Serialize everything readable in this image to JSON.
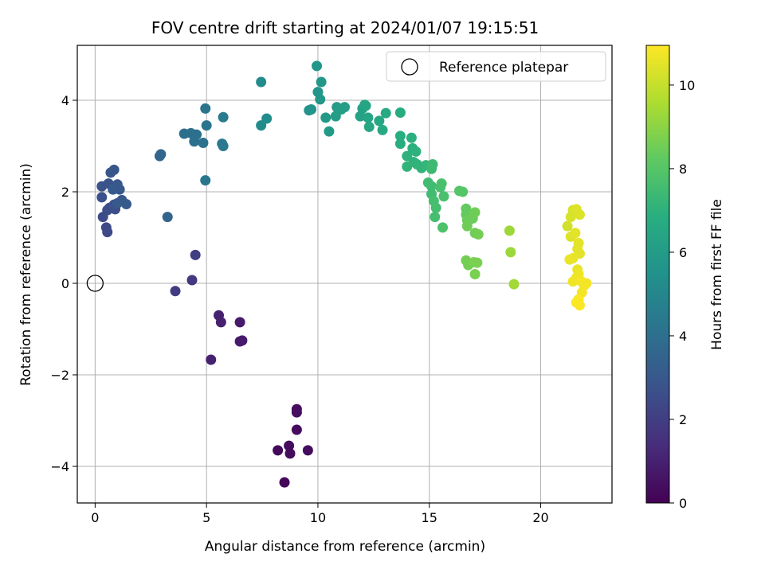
{
  "chart_data": {
    "type": "scatter",
    "title": "FOV centre drift starting at 2024/01/07 19:15:51",
    "xlabel": "Angular distance from reference (arcmin)",
    "ylabel": "Rotation from reference (arcmin)",
    "xlim": [
      -0.8,
      23.2
    ],
    "ylim": [
      -4.8,
      5.2
    ],
    "x_ticks": [
      0,
      5,
      10,
      15,
      20
    ],
    "y_ticks": [
      -4,
      -2,
      0,
      2,
      4
    ],
    "grid": true,
    "legend": {
      "placement": "top-right",
      "entries": [
        "Reference platepar"
      ]
    },
    "reference_point": {
      "x": 0,
      "y": 0
    },
    "colorbar": {
      "label": "Hours from first FF file",
      "range": [
        0,
        10.95
      ],
      "ticks": [
        0,
        2,
        4,
        6,
        8,
        10
      ],
      "colormap": "viridis"
    },
    "points": [
      {
        "x": 8.5,
        "y": -4.35,
        "c": 0.2
      },
      {
        "x": 8.2,
        "y": -3.65,
        "c": 0.25
      },
      {
        "x": 8.7,
        "y": -3.55,
        "c": 0.3
      },
      {
        "x": 8.75,
        "y": -3.72,
        "c": 0.3
      },
      {
        "x": 9.55,
        "y": -3.65,
        "c": 0.35
      },
      {
        "x": 9.05,
        "y": -3.2,
        "c": 0.35
      },
      {
        "x": 9.05,
        "y": -2.82,
        "c": 0.4
      },
      {
        "x": 9.05,
        "y": -2.75,
        "c": 0.4
      },
      {
        "x": 6.5,
        "y": -0.85,
        "c": 0.8
      },
      {
        "x": 6.5,
        "y": -1.27,
        "c": 0.8
      },
      {
        "x": 6.6,
        "y": -1.25,
        "c": 0.8
      },
      {
        "x": 5.55,
        "y": -0.7,
        "c": 1.0
      },
      {
        "x": 5.65,
        "y": -0.85,
        "c": 1.0
      },
      {
        "x": 5.2,
        "y": -1.67,
        "c": 1.0
      },
      {
        "x": 4.35,
        "y": 0.07,
        "c": 1.8
      },
      {
        "x": 3.6,
        "y": -0.17,
        "c": 1.9
      },
      {
        "x": 4.5,
        "y": 0.62,
        "c": 2.0
      },
      {
        "x": 0.5,
        "y": 1.22,
        "c": 2.4
      },
      {
        "x": 0.55,
        "y": 1.12,
        "c": 2.4
      },
      {
        "x": 0.35,
        "y": 1.45,
        "c": 2.5
      },
      {
        "x": 0.55,
        "y": 1.6,
        "c": 2.6
      },
      {
        "x": 0.65,
        "y": 1.65,
        "c": 2.6
      },
      {
        "x": 0.9,
        "y": 1.62,
        "c": 2.6
      },
      {
        "x": 0.85,
        "y": 1.72,
        "c": 2.7
      },
      {
        "x": 0.3,
        "y": 1.88,
        "c": 2.7
      },
      {
        "x": 0.3,
        "y": 2.12,
        "c": 2.8
      },
      {
        "x": 0.6,
        "y": 2.18,
        "c": 2.8
      },
      {
        "x": 0.7,
        "y": 2.42,
        "c": 2.9
      },
      {
        "x": 0.85,
        "y": 2.48,
        "c": 2.9
      },
      {
        "x": 1.0,
        "y": 2.16,
        "c": 3.0
      },
      {
        "x": 1.1,
        "y": 2.05,
        "c": 3.0
      },
      {
        "x": 1.2,
        "y": 1.82,
        "c": 3.0
      },
      {
        "x": 1.4,
        "y": 1.73,
        "c": 3.1
      },
      {
        "x": 1.0,
        "y": 1.75,
        "c": 3.1
      },
      {
        "x": 0.8,
        "y": 2.05,
        "c": 3.1
      },
      {
        "x": 3.25,
        "y": 1.45,
        "c": 3.5
      },
      {
        "x": 2.9,
        "y": 2.78,
        "c": 3.6
      },
      {
        "x": 2.95,
        "y": 2.82,
        "c": 3.6
      },
      {
        "x": 4.0,
        "y": 3.27,
        "c": 3.9
      },
      {
        "x": 4.3,
        "y": 3.28,
        "c": 4.0
      },
      {
        "x": 4.45,
        "y": 3.1,
        "c": 4.0
      },
      {
        "x": 4.55,
        "y": 3.25,
        "c": 4.0
      },
      {
        "x": 4.85,
        "y": 3.07,
        "c": 4.1
      },
      {
        "x": 5.0,
        "y": 3.45,
        "c": 4.2
      },
      {
        "x": 4.95,
        "y": 3.82,
        "c": 4.2
      },
      {
        "x": 4.95,
        "y": 2.25,
        "c": 4.3
      },
      {
        "x": 5.7,
        "y": 3.05,
        "c": 4.4
      },
      {
        "x": 5.75,
        "y": 3.0,
        "c": 4.4
      },
      {
        "x": 5.75,
        "y": 3.63,
        "c": 4.5
      },
      {
        "x": 7.45,
        "y": 4.4,
        "c": 5.2
      },
      {
        "x": 7.45,
        "y": 3.45,
        "c": 5.2
      },
      {
        "x": 7.7,
        "y": 3.6,
        "c": 5.3
      },
      {
        "x": 9.6,
        "y": 3.78,
        "c": 5.6
      },
      {
        "x": 9.7,
        "y": 3.8,
        "c": 5.6
      },
      {
        "x": 9.95,
        "y": 4.75,
        "c": 5.7
      },
      {
        "x": 10.0,
        "y": 4.18,
        "c": 5.7
      },
      {
        "x": 10.15,
        "y": 4.4,
        "c": 5.8
      },
      {
        "x": 10.1,
        "y": 4.02,
        "c": 5.8
      },
      {
        "x": 10.35,
        "y": 3.62,
        "c": 5.9
      },
      {
        "x": 10.5,
        "y": 3.32,
        "c": 5.9
      },
      {
        "x": 10.8,
        "y": 3.65,
        "c": 6.0
      },
      {
        "x": 10.85,
        "y": 3.85,
        "c": 6.0
      },
      {
        "x": 11.05,
        "y": 3.8,
        "c": 6.1
      },
      {
        "x": 11.2,
        "y": 3.85,
        "c": 6.1
      },
      {
        "x": 11.9,
        "y": 3.65,
        "c": 6.3
      },
      {
        "x": 12.0,
        "y": 3.82,
        "c": 6.3
      },
      {
        "x": 12.1,
        "y": 3.9,
        "c": 6.4
      },
      {
        "x": 12.15,
        "y": 3.88,
        "c": 6.4
      },
      {
        "x": 12.25,
        "y": 3.62,
        "c": 6.4
      },
      {
        "x": 12.3,
        "y": 3.42,
        "c": 6.5
      },
      {
        "x": 12.75,
        "y": 3.55,
        "c": 6.5
      },
      {
        "x": 12.9,
        "y": 3.35,
        "c": 6.6
      },
      {
        "x": 13.05,
        "y": 3.72,
        "c": 6.6
      },
      {
        "x": 13.7,
        "y": 3.73,
        "c": 6.7
      },
      {
        "x": 13.7,
        "y": 3.22,
        "c": 6.8
      },
      {
        "x": 13.7,
        "y": 3.05,
        "c": 6.8
      },
      {
        "x": 14.2,
        "y": 3.18,
        "c": 6.9
      },
      {
        "x": 14.25,
        "y": 2.95,
        "c": 6.9
      },
      {
        "x": 14.4,
        "y": 2.88,
        "c": 7.0
      },
      {
        "x": 14.0,
        "y": 2.78,
        "c": 7.0
      },
      {
        "x": 14.3,
        "y": 2.65,
        "c": 7.0
      },
      {
        "x": 14.0,
        "y": 2.55,
        "c": 7.1
      },
      {
        "x": 14.45,
        "y": 2.6,
        "c": 7.1
      },
      {
        "x": 14.65,
        "y": 2.52,
        "c": 7.1
      },
      {
        "x": 14.85,
        "y": 2.58,
        "c": 7.2
      },
      {
        "x": 15.1,
        "y": 2.5,
        "c": 7.4
      },
      {
        "x": 15.15,
        "y": 2.6,
        "c": 7.4
      },
      {
        "x": 14.95,
        "y": 2.2,
        "c": 7.5
      },
      {
        "x": 15.1,
        "y": 2.12,
        "c": 7.5
      },
      {
        "x": 15.1,
        "y": 1.95,
        "c": 7.5
      },
      {
        "x": 15.2,
        "y": 1.8,
        "c": 7.6
      },
      {
        "x": 15.3,
        "y": 1.65,
        "c": 7.6
      },
      {
        "x": 15.25,
        "y": 1.45,
        "c": 7.6
      },
      {
        "x": 15.5,
        "y": 2.1,
        "c": 7.7
      },
      {
        "x": 15.55,
        "y": 2.18,
        "c": 7.7
      },
      {
        "x": 15.65,
        "y": 1.9,
        "c": 7.7
      },
      {
        "x": 15.6,
        "y": 1.22,
        "c": 7.8
      },
      {
        "x": 16.35,
        "y": 2.02,
        "c": 8.0
      },
      {
        "x": 16.5,
        "y": 2.0,
        "c": 8.0
      },
      {
        "x": 16.65,
        "y": 1.63,
        "c": 8.3
      },
      {
        "x": 16.65,
        "y": 1.5,
        "c": 8.3
      },
      {
        "x": 16.7,
        "y": 1.38,
        "c": 8.4
      },
      {
        "x": 16.85,
        "y": 1.4,
        "c": 8.4
      },
      {
        "x": 16.95,
        "y": 1.42,
        "c": 8.4
      },
      {
        "x": 17.05,
        "y": 1.55,
        "c": 8.5
      },
      {
        "x": 16.7,
        "y": 1.25,
        "c": 8.5
      },
      {
        "x": 17.05,
        "y": 1.1,
        "c": 8.5
      },
      {
        "x": 17.2,
        "y": 1.07,
        "c": 8.6
      },
      {
        "x": 16.65,
        "y": 0.5,
        "c": 8.6
      },
      {
        "x": 16.75,
        "y": 0.4,
        "c": 8.6
      },
      {
        "x": 17.0,
        "y": 0.46,
        "c": 8.7
      },
      {
        "x": 17.15,
        "y": 0.45,
        "c": 8.7
      },
      {
        "x": 17.05,
        "y": 0.2,
        "c": 8.7
      },
      {
        "x": 18.6,
        "y": 1.15,
        "c": 9.3
      },
      {
        "x": 18.65,
        "y": 0.68,
        "c": 9.3
      },
      {
        "x": 18.8,
        "y": -0.02,
        "c": 9.4
      },
      {
        "x": 21.2,
        "y": 1.25,
        "c": 10.2
      },
      {
        "x": 21.35,
        "y": 1.45,
        "c": 10.3
      },
      {
        "x": 21.45,
        "y": 1.6,
        "c": 10.3
      },
      {
        "x": 21.5,
        "y": 1.55,
        "c": 10.3
      },
      {
        "x": 21.6,
        "y": 1.62,
        "c": 10.4
      },
      {
        "x": 21.75,
        "y": 1.5,
        "c": 10.4
      },
      {
        "x": 21.35,
        "y": 1.02,
        "c": 10.4
      },
      {
        "x": 21.55,
        "y": 1.1,
        "c": 10.5
      },
      {
        "x": 21.7,
        "y": 0.88,
        "c": 10.5
      },
      {
        "x": 21.65,
        "y": 0.75,
        "c": 10.5
      },
      {
        "x": 21.75,
        "y": 0.65,
        "c": 10.5
      },
      {
        "x": 21.45,
        "y": 0.55,
        "c": 10.6
      },
      {
        "x": 21.3,
        "y": 0.52,
        "c": 10.6
      },
      {
        "x": 21.65,
        "y": 0.3,
        "c": 10.6
      },
      {
        "x": 21.7,
        "y": 0.2,
        "c": 10.7
      },
      {
        "x": 21.6,
        "y": 0.12,
        "c": 10.7
      },
      {
        "x": 21.45,
        "y": 0.04,
        "c": 10.7
      },
      {
        "x": 21.8,
        "y": 0.05,
        "c": 10.8
      },
      {
        "x": 21.95,
        "y": -0.05,
        "c": 10.8
      },
      {
        "x": 22.05,
        "y": 0.0,
        "c": 10.8
      },
      {
        "x": 21.85,
        "y": -0.2,
        "c": 10.8
      },
      {
        "x": 21.7,
        "y": -0.35,
        "c": 10.9
      },
      {
        "x": 21.6,
        "y": -0.42,
        "c": 10.9
      },
      {
        "x": 21.75,
        "y": -0.48,
        "c": 10.9
      }
    ]
  }
}
